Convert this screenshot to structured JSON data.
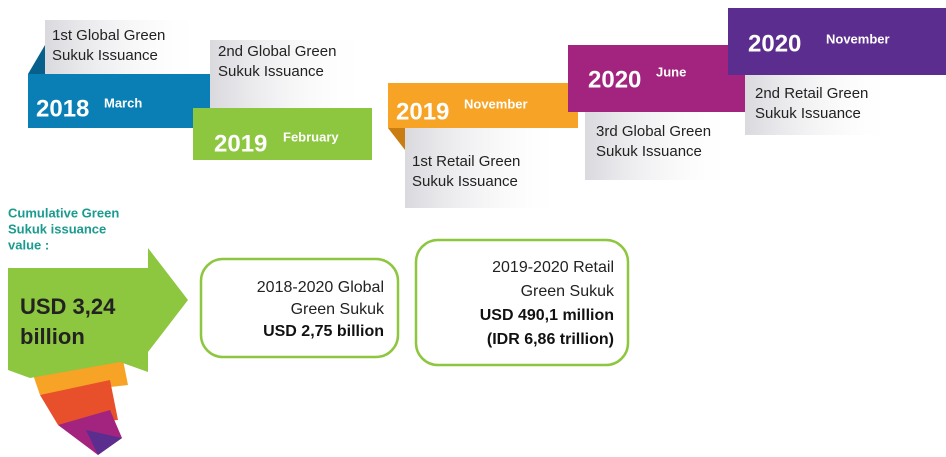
{
  "timeline": [
    {
      "year": "2018",
      "month": "March",
      "description": [
        "1st Global Green",
        "Sukuk Issuance"
      ]
    },
    {
      "year": "2019",
      "month": "February",
      "description": [
        "2nd Global Green",
        "Sukuk Issuance"
      ]
    },
    {
      "year": "2019",
      "month": "November",
      "description": [
        "1st Retail Green",
        "Sukuk Issuance"
      ]
    },
    {
      "year": "2020",
      "month": "June",
      "description": [
        "3rd Global Green",
        "Sukuk Issuance"
      ]
    },
    {
      "year": "2020",
      "month": "November",
      "description": [
        "2nd Retail Green",
        "Sukuk Issuance"
      ]
    }
  ],
  "summary": {
    "label": [
      "Cumulative Green",
      "Sukuk issuance",
      "value :"
    ],
    "value": [
      "USD 3,24",
      "billion"
    ]
  },
  "boxes": [
    {
      "lines": [
        "2018-2020 Global",
        "Green Sukuk",
        "USD 2,75 billion"
      ]
    },
    {
      "lines": [
        "2019-2020 Retail",
        "Green Sukuk",
        "USD 490,1 million",
        "(IDR 6,86 trillion)"
      ]
    }
  ]
}
